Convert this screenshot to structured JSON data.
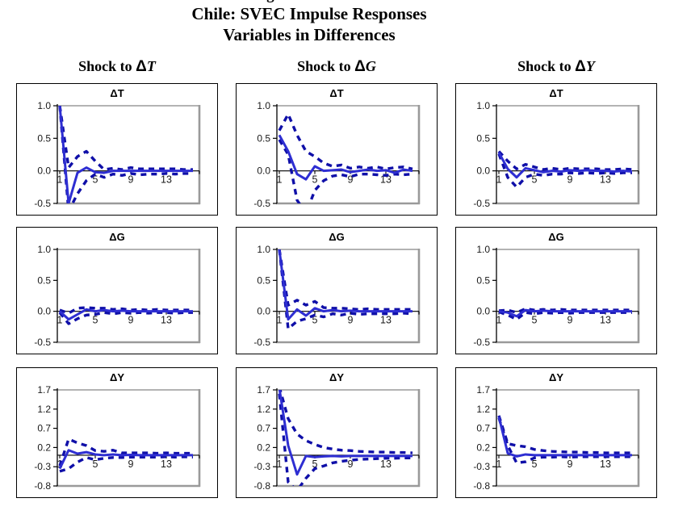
{
  "figure": {
    "cropped_top_text": "Figure"
  },
  "title": {
    "line1": "Chile: SVEC Impulse Responses",
    "line2": "Variables in Differences"
  },
  "columns": [
    {
      "prefix": "Shock to ",
      "delta": "Δ",
      "var": "T"
    },
    {
      "prefix": "Shock to ",
      "delta": "Δ",
      "var": "G"
    },
    {
      "prefix": "Shock to ",
      "delta": "Δ",
      "var": "Y"
    }
  ],
  "colors": {
    "solid_line": "#2e2ed2",
    "band_line": "#0f0fa8",
    "axis": "#000000",
    "plot_border": "#9a9a9a",
    "panel_border": "#000000",
    "tick_text": "#1a1a1a"
  },
  "chart_data": [
    {
      "type": "line",
      "row": 0,
      "col": 0,
      "title": "ΔT",
      "x": [
        1,
        2,
        3,
        4,
        5,
        6,
        7,
        8,
        9,
        10,
        11,
        12,
        13,
        14,
        15,
        16
      ],
      "xticks": [
        1,
        5,
        9,
        13
      ],
      "ylim": [
        -0.5,
        1.0
      ],
      "yticks": [
        "1.0",
        "0.5",
        "0.0",
        "-0.5"
      ],
      "series": [
        {
          "name": "response",
          "style": "solid",
          "values": [
            1.0,
            -0.5,
            -0.03,
            0.05,
            -0.02,
            -0.03,
            0,
            0,
            0,
            0,
            0,
            0,
            0,
            0,
            0,
            0
          ]
        },
        {
          "name": "upper-band",
          "style": "dashed",
          "values": [
            1.0,
            0.05,
            0.22,
            0.3,
            0.15,
            0.02,
            0.04,
            0.02,
            0.05,
            0.03,
            0.03,
            0.03,
            0.03,
            0.03,
            0.02,
            0.02
          ]
        },
        {
          "name": "lower-band",
          "style": "dashed",
          "values": [
            1.0,
            -0.62,
            -0.35,
            -0.15,
            -0.05,
            -0.1,
            -0.05,
            -0.07,
            -0.04,
            -0.06,
            -0.05,
            -0.05,
            -0.04,
            -0.05,
            -0.04,
            -0.04
          ]
        }
      ]
    },
    {
      "type": "line",
      "row": 0,
      "col": 1,
      "title": "ΔT",
      "x": [
        1,
        2,
        3,
        4,
        5,
        6,
        7,
        8,
        9,
        10,
        11,
        12,
        13,
        14,
        15,
        16
      ],
      "xticks": [
        1,
        5,
        9,
        13
      ],
      "ylim": [
        -0.5,
        1.0
      ],
      "yticks": [
        "1.0",
        "0.5",
        "0.0",
        "-0.5"
      ],
      "series": [
        {
          "name": "response",
          "style": "solid",
          "values": [
            0.55,
            0.3,
            -0.05,
            -0.13,
            0.07,
            0.0,
            0.01,
            0.02,
            -0.02,
            0.0,
            0.02,
            0.0,
            0.01,
            -0.03,
            0.02,
            0.0
          ]
        },
        {
          "name": "upper-band",
          "style": "dashed",
          "values": [
            0.62,
            0.87,
            0.55,
            0.3,
            0.22,
            0.12,
            0.07,
            0.09,
            0.04,
            0.06,
            0.04,
            0.06,
            0.03,
            0.05,
            0.06,
            0.03
          ]
        },
        {
          "name": "lower-band",
          "style": "dashed",
          "values": [
            0.48,
            0.25,
            -0.45,
            -0.65,
            -0.3,
            -0.15,
            -0.08,
            -0.06,
            -0.09,
            -0.05,
            -0.05,
            -0.06,
            -0.07,
            -0.05,
            -0.06,
            -0.05
          ]
        }
      ]
    },
    {
      "type": "line",
      "row": 0,
      "col": 2,
      "title": "ΔT",
      "x": [
        1,
        2,
        3,
        4,
        5,
        6,
        7,
        8,
        9,
        10,
        11,
        12,
        13,
        14,
        15,
        16
      ],
      "xticks": [
        1,
        5,
        9,
        13
      ],
      "ylim": [
        -0.5,
        1.0
      ],
      "yticks": [
        "1.0",
        "0.5",
        "0.0",
        "-0.5"
      ],
      "series": [
        {
          "name": "response",
          "style": "solid",
          "values": [
            0.28,
            0.03,
            -0.1,
            0.04,
            0.01,
            -0.02,
            0.0,
            -0.01,
            0.01,
            0.0,
            0.01,
            0.0,
            0.0,
            -0.01,
            0.0,
            -0.01
          ]
        },
        {
          "name": "upper-band",
          "style": "dashed",
          "values": [
            0.3,
            0.15,
            0.03,
            0.1,
            0.06,
            0.02,
            0.04,
            0.02,
            0.04,
            0.03,
            0.03,
            0.03,
            0.02,
            0.02,
            0.03,
            0.02
          ]
        },
        {
          "name": "lower-band",
          "style": "dashed",
          "values": [
            0.26,
            -0.1,
            -0.25,
            -0.1,
            -0.05,
            -0.07,
            -0.05,
            -0.05,
            -0.03,
            -0.04,
            -0.03,
            -0.04,
            -0.03,
            -0.04,
            -0.03,
            -0.03
          ]
        }
      ]
    },
    {
      "type": "line",
      "row": 1,
      "col": 0,
      "title": "ΔG",
      "x": [
        1,
        2,
        3,
        4,
        5,
        6,
        7,
        8,
        9,
        10,
        11,
        12,
        13,
        14,
        15,
        16
      ],
      "xticks": [
        1,
        5,
        9,
        13
      ],
      "ylim": [
        -0.5,
        1.0
      ],
      "yticks": [
        "1.0",
        "0.5",
        "0.0",
        "-0.5"
      ],
      "series": [
        {
          "name": "response",
          "style": "solid",
          "values": [
            0.0,
            -0.13,
            -0.05,
            0.03,
            0.0,
            0.02,
            0.0,
            0.01,
            0.0,
            0.0,
            0.0,
            0.0,
            0.0,
            0.0,
            0.0,
            0.0
          ]
        },
        {
          "name": "upper-band",
          "style": "dashed",
          "values": [
            0.02,
            -0.03,
            0.05,
            0.06,
            0.05,
            0.05,
            0.03,
            0.04,
            0.02,
            0.03,
            0.02,
            0.03,
            0.02,
            0.02,
            0.02,
            0.02
          ]
        },
        {
          "name": "lower-band",
          "style": "dashed",
          "values": [
            -0.02,
            -0.2,
            -0.12,
            -0.06,
            -0.05,
            -0.02,
            -0.04,
            -0.02,
            -0.03,
            -0.02,
            -0.03,
            -0.02,
            -0.02,
            -0.03,
            -0.02,
            -0.02
          ]
        }
      ]
    },
    {
      "type": "line",
      "row": 1,
      "col": 1,
      "title": "ΔG",
      "x": [
        1,
        2,
        3,
        4,
        5,
        6,
        7,
        8,
        9,
        10,
        11,
        12,
        13,
        14,
        15,
        16
      ],
      "xticks": [
        1,
        5,
        9,
        13
      ],
      "ylim": [
        -0.5,
        1.0
      ],
      "yticks": [
        "1.0",
        "0.5",
        "0.0",
        "-0.5"
      ],
      "series": [
        {
          "name": "response",
          "style": "solid",
          "values": [
            1.0,
            -0.13,
            0.03,
            -0.07,
            0.05,
            0.0,
            0.02,
            0.0,
            0.01,
            0.0,
            0.0,
            0.0,
            0.0,
            0.0,
            0.0,
            0.0
          ]
        },
        {
          "name": "upper-band",
          "style": "dashed",
          "values": [
            1.0,
            0.1,
            0.18,
            0.1,
            0.16,
            0.06,
            0.05,
            0.05,
            0.04,
            0.03,
            0.04,
            0.03,
            0.03,
            0.03,
            0.03,
            0.03
          ]
        },
        {
          "name": "lower-band",
          "style": "dashed",
          "values": [
            1.0,
            -0.28,
            -0.16,
            -0.12,
            -0.06,
            -0.09,
            -0.04,
            -0.06,
            -0.03,
            -0.05,
            -0.04,
            -0.04,
            -0.04,
            -0.04,
            -0.03,
            -0.04
          ]
        }
      ]
    },
    {
      "type": "line",
      "row": 1,
      "col": 2,
      "title": "ΔG",
      "x": [
        1,
        2,
        3,
        4,
        5,
        6,
        7,
        8,
        9,
        10,
        11,
        12,
        13,
        14,
        15,
        16
      ],
      "xticks": [
        1,
        5,
        9,
        13
      ],
      "ylim": [
        -0.5,
        1.0
      ],
      "yticks": [
        "1.0",
        "0.5",
        "0.0",
        "-0.5"
      ],
      "series": [
        {
          "name": "response",
          "style": "solid",
          "values": [
            0.0,
            -0.02,
            -0.08,
            0.02,
            0.0,
            0.01,
            0.0,
            0.0,
            0.0,
            0.0,
            0.0,
            0.0,
            0.0,
            0.0,
            0.0,
            0.0
          ]
        },
        {
          "name": "upper-band",
          "style": "dashed",
          "values": [
            0.01,
            0.02,
            -0.02,
            0.04,
            0.02,
            0.03,
            0.02,
            0.03,
            0.02,
            0.02,
            0.02,
            0.02,
            0.02,
            0.02,
            0.02,
            0.02
          ]
        },
        {
          "name": "lower-band",
          "style": "dashed",
          "values": [
            -0.01,
            -0.06,
            -0.13,
            -0.02,
            -0.04,
            -0.02,
            -0.03,
            -0.02,
            -0.03,
            -0.02,
            -0.02,
            -0.02,
            -0.02,
            -0.02,
            -0.02,
            -0.02
          ]
        }
      ]
    },
    {
      "type": "line",
      "row": 2,
      "col": 0,
      "title": "ΔY",
      "x": [
        1,
        2,
        3,
        4,
        5,
        6,
        7,
        8,
        9,
        10,
        11,
        12,
        13,
        14,
        15,
        16
      ],
      "xticks": [
        1,
        5,
        9,
        13
      ],
      "ylim": [
        -0.8,
        1.7
      ],
      "yticks": [
        "1.7",
        "1.2",
        "0.7",
        "0.2",
        "-0.3",
        "-0.8"
      ],
      "series": [
        {
          "name": "response",
          "style": "solid",
          "values": [
            -0.35,
            0.13,
            0.04,
            0.08,
            0.02,
            0.0,
            0.02,
            0.0,
            0.01,
            0.0,
            0.0,
            0.0,
            0.0,
            0.0,
            0.0,
            0.0
          ]
        },
        {
          "name": "upper-band",
          "style": "dashed",
          "values": [
            -0.28,
            0.42,
            0.32,
            0.25,
            0.12,
            0.1,
            0.13,
            0.06,
            0.06,
            0.06,
            0.06,
            0.05,
            0.06,
            0.05,
            0.05,
            0.05
          ]
        },
        {
          "name": "lower-band",
          "style": "dashed",
          "values": [
            -0.42,
            -0.35,
            -0.18,
            -0.06,
            -0.12,
            -0.08,
            -0.06,
            -0.06,
            -0.05,
            -0.05,
            -0.05,
            -0.05,
            -0.04,
            -0.05,
            -0.04,
            -0.05
          ]
        }
      ]
    },
    {
      "type": "line",
      "row": 2,
      "col": 1,
      "title": "ΔY",
      "x": [
        1,
        2,
        3,
        4,
        5,
        6,
        7,
        8,
        9,
        10,
        11,
        12,
        13,
        14,
        15,
        16
      ],
      "xticks": [
        1,
        5,
        9,
        13
      ],
      "ylim": [
        -0.8,
        1.7
      ],
      "yticks": [
        "1.7",
        "1.2",
        "0.7",
        "0.2",
        "-0.3",
        "-0.8"
      ],
      "series": [
        {
          "name": "response",
          "style": "solid",
          "values": [
            1.75,
            0.25,
            -0.5,
            -0.02,
            -0.05,
            -0.03,
            -0.02,
            -0.03,
            -0.02,
            -0.02,
            -0.02,
            -0.02,
            -0.02,
            -0.02,
            -0.02,
            -0.02
          ]
        },
        {
          "name": "upper-band",
          "style": "dashed",
          "values": [
            1.78,
            0.95,
            0.55,
            0.38,
            0.28,
            0.2,
            0.16,
            0.13,
            0.12,
            0.1,
            0.09,
            0.08,
            0.08,
            0.07,
            0.07,
            0.06
          ]
        },
        {
          "name": "lower-band",
          "style": "dashed",
          "values": [
            1.6,
            -0.7,
            -0.92,
            -0.6,
            -0.35,
            -0.28,
            -0.2,
            -0.16,
            -0.13,
            -0.11,
            -0.1,
            -0.09,
            -0.08,
            -0.08,
            -0.07,
            -0.07
          ]
        }
      ]
    },
    {
      "type": "line",
      "row": 2,
      "col": 2,
      "title": "ΔY",
      "x": [
        1,
        2,
        3,
        4,
        5,
        6,
        7,
        8,
        9,
        10,
        11,
        12,
        13,
        14,
        15,
        16
      ],
      "xticks": [
        1,
        5,
        9,
        13
      ],
      "ylim": [
        -0.8,
        1.7
      ],
      "yticks": [
        "1.7",
        "1.2",
        "0.7",
        "0.2",
        "-0.3",
        "-0.8"
      ],
      "series": [
        {
          "name": "response",
          "style": "solid",
          "values": [
            1.0,
            0.05,
            -0.03,
            0.02,
            0.0,
            0.0,
            0.0,
            0.0,
            0.0,
            0.0,
            0.0,
            0.0,
            0.0,
            0.0,
            0.0,
            0.0
          ]
        },
        {
          "name": "upper-band",
          "style": "dashed",
          "values": [
            1.03,
            0.3,
            0.25,
            0.22,
            0.15,
            0.12,
            0.1,
            0.09,
            0.08,
            0.08,
            0.07,
            0.07,
            0.06,
            0.06,
            0.06,
            0.06
          ]
        },
        {
          "name": "lower-band",
          "style": "dashed",
          "values": [
            0.97,
            0.25,
            -0.2,
            -0.17,
            -0.07,
            -0.05,
            -0.05,
            -0.04,
            -0.05,
            -0.04,
            -0.04,
            -0.04,
            -0.04,
            -0.04,
            -0.04,
            -0.04
          ]
        }
      ]
    }
  ]
}
